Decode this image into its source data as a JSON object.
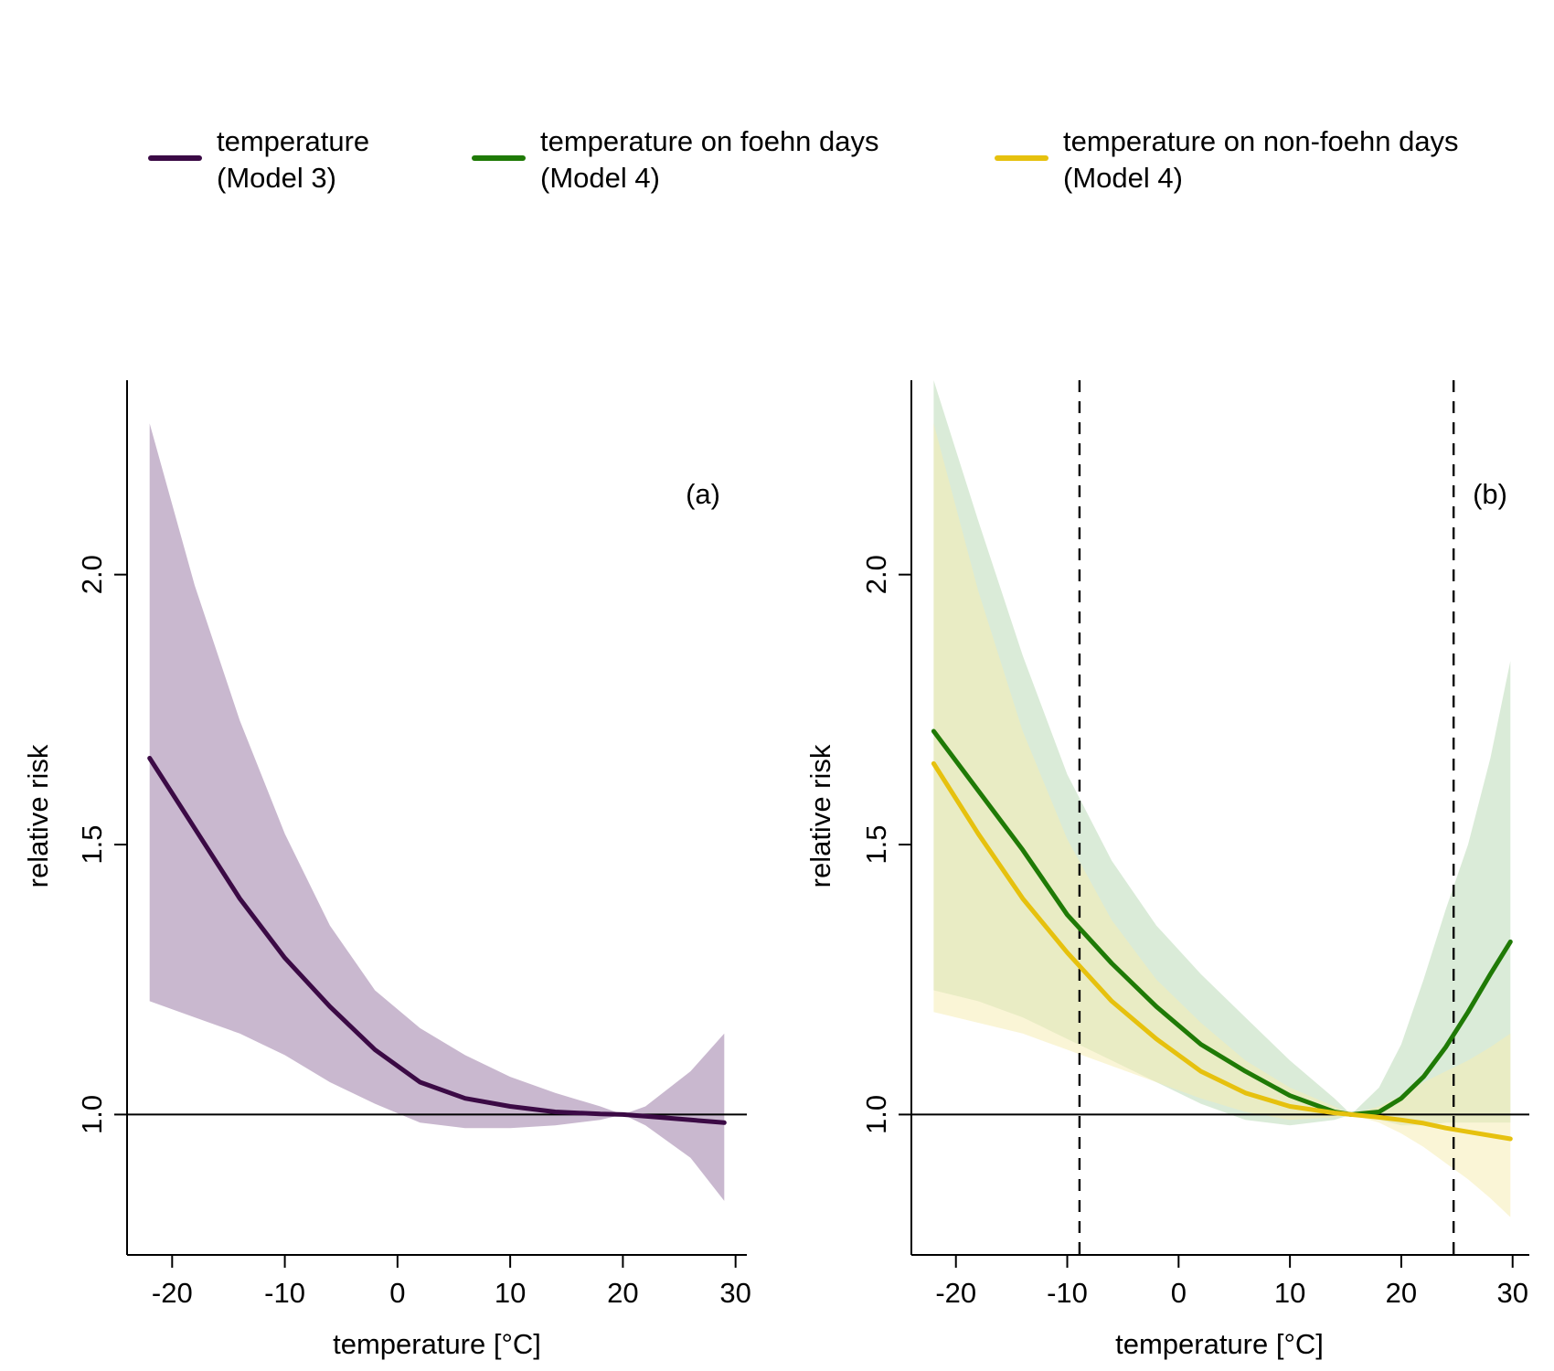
{
  "legend": {
    "items": [
      {
        "line1": "temperature",
        "line2": "(Model 3)",
        "color": "#3b0a45"
      },
      {
        "line1": "temperature on foehn days",
        "line2": "(Model 4)",
        "color": "#1f7a06"
      },
      {
        "line1": "temperature on non-foehn days",
        "line2": "(Model 4)",
        "color": "#e6c10e"
      }
    ]
  },
  "chart_data": [
    {
      "type": "line",
      "panel_label": "(a)",
      "xlabel": "temperature [°C]",
      "ylabel": "relative risk",
      "xlim": [
        -24,
        31
      ],
      "ylim": [
        0.74,
        2.36
      ],
      "xticks": [
        -20,
        -10,
        0,
        10,
        20,
        30
      ],
      "yticks": [
        1.0,
        1.5,
        2.0
      ],
      "xtick_labels": [
        "-20",
        "-10",
        "0",
        "10",
        "20",
        "30"
      ],
      "ytick_labels": [
        "1.0",
        "1.5",
        "2.0"
      ],
      "reference_line": 1.0,
      "vlines": [],
      "series": [
        {
          "name": "temperature (Model 3)",
          "line_color": "#3b0a45",
          "band_color": "#c9b8cf",
          "band_opacity": 1,
          "x": [
            -22,
            -18,
            -14,
            -10,
            -6,
            -2,
            2,
            6,
            10,
            14,
            18,
            20,
            22,
            26,
            29
          ],
          "y": [
            1.66,
            1.53,
            1.4,
            1.29,
            1.2,
            1.12,
            1.06,
            1.03,
            1.015,
            1.005,
            1.001,
            1.0,
            0.997,
            0.99,
            0.985
          ],
          "lower": [
            1.21,
            1.18,
            1.15,
            1.11,
            1.06,
            1.02,
            0.985,
            0.975,
            0.975,
            0.98,
            0.99,
            1.0,
            0.98,
            0.92,
            0.84
          ],
          "upper": [
            2.28,
            1.98,
            1.73,
            1.52,
            1.35,
            1.23,
            1.16,
            1.11,
            1.07,
            1.04,
            1.015,
            1.0,
            1.015,
            1.08,
            1.15
          ]
        }
      ]
    },
    {
      "type": "line",
      "panel_label": "(b)",
      "xlabel": "temperature [°C]",
      "ylabel": "relative risk",
      "xlim": [
        -24,
        31.5
      ],
      "ylim": [
        0.74,
        2.36
      ],
      "xticks": [
        -20,
        -10,
        0,
        10,
        20,
        30
      ],
      "yticks": [
        1.0,
        1.5,
        2.0
      ],
      "xtick_labels": [
        "-20",
        "-10",
        "0",
        "10",
        "20",
        "30"
      ],
      "ytick_labels": [
        "1.0",
        "1.5",
        "2.0"
      ],
      "reference_line": 1.0,
      "vlines": [
        -8.9,
        24.7
      ],
      "series": [
        {
          "name": "temperature on foehn days (Model 4)",
          "line_color": "#1f7a06",
          "band_color": "#d4e7d1",
          "band_opacity": 0.85,
          "x": [
            -22,
            -18,
            -14,
            -10,
            -6,
            -2,
            2,
            6,
            10,
            14,
            15.5,
            18,
            20,
            22,
            24,
            26,
            28,
            29.8
          ],
          "y": [
            1.71,
            1.6,
            1.49,
            1.37,
            1.28,
            1.2,
            1.13,
            1.08,
            1.035,
            1.005,
            1.0,
            1.005,
            1.03,
            1.07,
            1.125,
            1.19,
            1.26,
            1.32
          ],
          "lower": [
            1.23,
            1.21,
            1.18,
            1.14,
            1.1,
            1.06,
            1.02,
            0.99,
            0.98,
            0.99,
            1.0,
            0.99,
            0.98,
            0.98,
            0.985,
            0.985,
            0.985,
            0.985
          ],
          "upper": [
            2.36,
            2.1,
            1.85,
            1.63,
            1.47,
            1.35,
            1.26,
            1.18,
            1.1,
            1.03,
            1.0,
            1.05,
            1.13,
            1.25,
            1.38,
            1.5,
            1.66,
            1.84
          ]
        },
        {
          "name": "temperature on non-foehn days (Model 4)",
          "line_color": "#e6c10e",
          "band_color": "#f5ecb4",
          "band_opacity": 0.55,
          "x": [
            -22,
            -18,
            -14,
            -10,
            -6,
            -2,
            2,
            6,
            10,
            14,
            15.5,
            18,
            20,
            22,
            24,
            26,
            28,
            29.8
          ],
          "y": [
            1.65,
            1.52,
            1.4,
            1.3,
            1.21,
            1.14,
            1.08,
            1.04,
            1.015,
            1.003,
            1.0,
            0.995,
            0.99,
            0.984,
            0.975,
            0.968,
            0.961,
            0.955
          ],
          "lower": [
            1.19,
            1.17,
            1.15,
            1.12,
            1.09,
            1.06,
            1.03,
            1.005,
            0.99,
            0.995,
            1.0,
            0.985,
            0.965,
            0.94,
            0.91,
            0.88,
            0.845,
            0.81
          ],
          "upper": [
            2.28,
            1.97,
            1.71,
            1.51,
            1.36,
            1.25,
            1.17,
            1.1,
            1.05,
            1.015,
            1.0,
            1.015,
            1.035,
            1.06,
            1.08,
            1.1,
            1.125,
            1.15
          ]
        }
      ]
    }
  ]
}
